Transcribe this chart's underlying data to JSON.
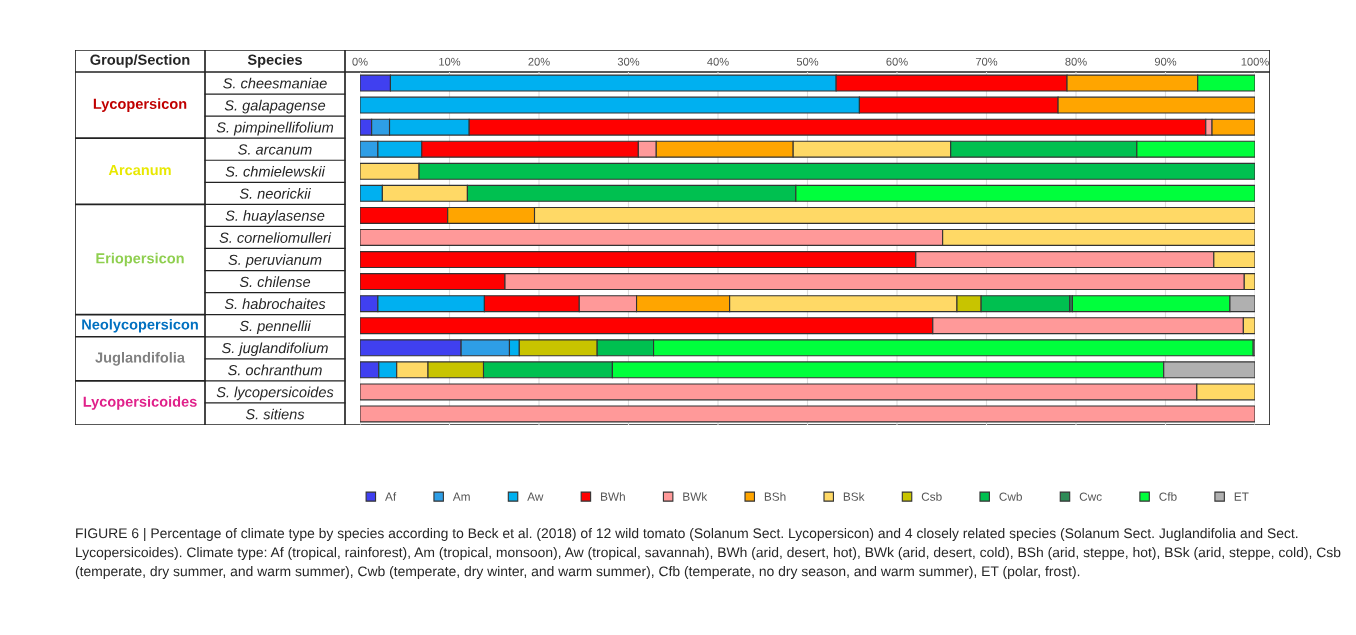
{
  "chart_data": {
    "type": "bar",
    "orientation": "horizontal",
    "stacked": true,
    "xlabel": "Species",
    "categories": [
      "S. cheesmaniae",
      "S. galapagense",
      "S. pimpinellifolium",
      "S. arcanum",
      "S. chmielewskii",
      "S. neorickii",
      "S. huaylasense",
      "S. corneliomulleri",
      "S. peruvianum",
      "S. chilense",
      "S. habrochaites",
      "S. pennellii",
      "S. juglandifolium",
      "S. ochranthum",
      "S. lycopersicoides",
      "S. sitiens"
    ],
    "series": [
      {
        "name": "Af",
        "color": "#4040f0",
        "values": [
          3.4,
          null,
          1.3,
          null,
          null,
          null,
          null,
          null,
          null,
          null,
          2.0,
          null,
          11.3,
          2.1,
          null,
          null
        ]
      },
      {
        "name": "Am",
        "color": "#2e9ee6",
        "values": [
          null,
          null,
          2.0,
          2.0,
          null,
          null,
          null,
          null,
          null,
          null,
          null,
          null,
          5.4,
          null,
          null,
          null
        ]
      },
      {
        "name": "Aw",
        "color": "#00b0f0",
        "values": [
          49.8,
          55.8,
          8.9,
          4.9,
          null,
          2.5,
          null,
          null,
          null,
          null,
          11.9,
          null,
          1.1,
          2.0,
          null,
          null
        ]
      },
      {
        "name": "BWh",
        "color": "#ff0000",
        "values": [
          25.8,
          22.2,
          82.3,
          24.2,
          null,
          null,
          9.8,
          null,
          62.1,
          16.2,
          10.6,
          64.0,
          null,
          null,
          null,
          null
        ]
      },
      {
        "name": "BWk",
        "color": "#ff9999",
        "values": [
          null,
          null,
          0.7,
          2.0,
          null,
          null,
          null,
          65.1,
          33.3,
          82.6,
          6.4,
          34.7,
          null,
          null,
          93.5,
          100
        ]
      },
      {
        "name": "BSh",
        "color": "#ffa500",
        "values": [
          14.6,
          22.0,
          4.8,
          15.3,
          null,
          null,
          9.7,
          null,
          null,
          null,
          10.4,
          null,
          null,
          null,
          null,
          null
        ]
      },
      {
        "name": "BSk",
        "color": "#ffd966",
        "values": [
          null,
          null,
          null,
          17.6,
          6.6,
          9.5,
          80.5,
          34.9,
          4.6,
          1.2,
          25.4,
          1.3,
          null,
          3.5,
          6.5,
          null
        ]
      },
      {
        "name": "Csb",
        "color": "#c8c400",
        "values": [
          null,
          null,
          null,
          null,
          null,
          null,
          null,
          null,
          null,
          null,
          2.7,
          null,
          8.7,
          6.2,
          null,
          null
        ]
      },
      {
        "name": "Cwb",
        "color": "#00c050",
        "values": [
          null,
          null,
          null,
          20.8,
          93.4,
          36.7,
          null,
          null,
          null,
          null,
          9.9,
          null,
          6.3,
          14.4,
          null,
          null
        ]
      },
      {
        "name": "Cwc",
        "color": "#2e8b57",
        "values": [
          null,
          null,
          null,
          null,
          null,
          null,
          null,
          null,
          null,
          null,
          0.3,
          null,
          null,
          null,
          null,
          null
        ]
      },
      {
        "name": "Cfb",
        "color": "#00ff3c",
        "values": [
          6.4,
          null,
          null,
          13.2,
          null,
          51.3,
          null,
          null,
          null,
          null,
          17.6,
          null,
          67.0,
          61.6,
          null,
          null
        ]
      },
      {
        "name": "ET",
        "color": "#b0b0b0",
        "values": [
          null,
          null,
          null,
          null,
          null,
          null,
          null,
          null,
          null,
          null,
          2.8,
          null,
          0.2,
          10.2,
          null,
          null
        ]
      }
    ],
    "xlim": [
      0,
      100
    ],
    "xticks": [
      {
        "value": 0,
        "label": "0%"
      },
      {
        "value": 10,
        "label": "10%"
      },
      {
        "value": 20,
        "label": "20%"
      },
      {
        "value": 30,
        "label": "30%"
      },
      {
        "value": 40,
        "label": "40%"
      },
      {
        "value": 50,
        "label": "50%"
      },
      {
        "value": 60,
        "label": "60%"
      },
      {
        "value": 70,
        "label": "70%"
      },
      {
        "value": 80,
        "label": "80%"
      },
      {
        "value": 90,
        "label": "90%"
      },
      {
        "value": 100,
        "label": "100%"
      }
    ],
    "grid": "x",
    "legend": "bottom",
    "annotations": [
      "Group/Section",
      "Lycopersicon",
      "Arcanum",
      "Eriopersicon",
      "Neolycopersicon",
      "Juglandifolia",
      "Lycopersicoides",
      "FIGURE 6 | Percentage of climate type by species according to Beck et al. (2018) of 12 wild tomato (Solanum Sect. Lycopersicon) and 4 closely related species (Solanum Sect. Juglandifolia and Sect. Lycopersicoides). Climate type: Af (tropical, rainforest), Am (tropical, monsoon), Aw (tropical, savannah), BWh (arid, desert, hot), BWk (arid, desert, cold), BSh (arid, steppe, hot), BSk (arid, steppe, cold), Csb (temperate, dry summer, and warm summer), Cwb (temperate, dry winter, and warm summer), Cfb (temperate, no dry season, and warm summer), ET (polar, frost)."
    ]
  }
}
